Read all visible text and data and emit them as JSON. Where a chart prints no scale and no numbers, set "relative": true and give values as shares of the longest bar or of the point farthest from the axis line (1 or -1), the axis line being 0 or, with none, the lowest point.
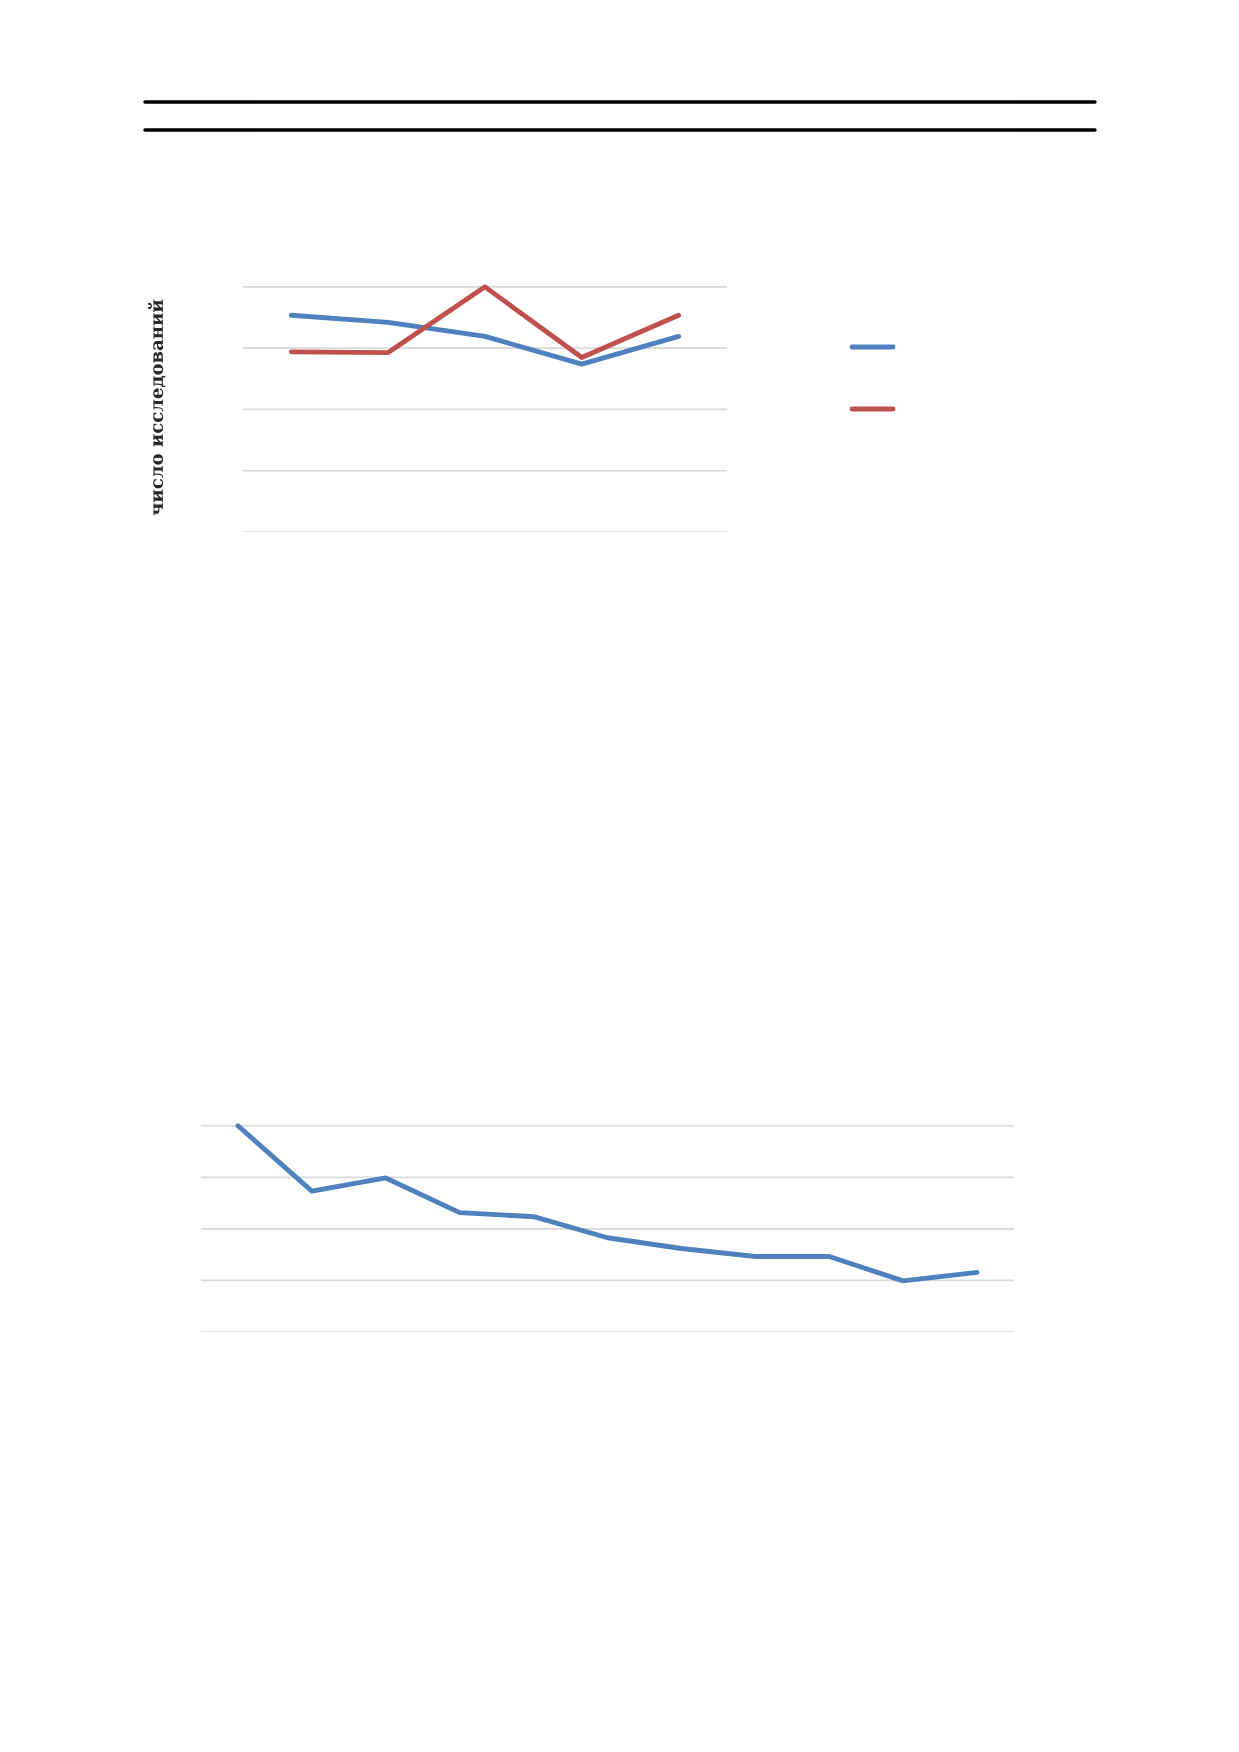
{
  "chart_data": [
    {
      "type": "line",
      "relative": true,
      "ylabel": "число исследований",
      "categories": [
        null,
        null,
        null,
        null,
        null
      ],
      "grid": "y",
      "series": [
        {
          "color": "#4f81bd",
          "values": [
            0.884,
            0.855,
            0.798,
            0.685,
            0.798
          ]
        },
        {
          "color": "#c0504d",
          "values": [
            0.735,
            0.732,
            1,
            0.712,
            0.884
          ]
        }
      ]
    },
    {
      "type": "line",
      "relative": true,
      "categories": [
        null,
        null,
        null,
        null,
        null,
        null,
        null,
        null,
        null,
        null,
        null
      ],
      "grid": "y",
      "series": [
        {
          "color": "#4f81bd",
          "values": [
            1,
            0.683,
            0.747,
            0.579,
            0.559,
            0.457,
            0.405,
            0.366,
            0.366,
            0.248,
            0.289
          ]
        }
      ]
    }
  ]
}
